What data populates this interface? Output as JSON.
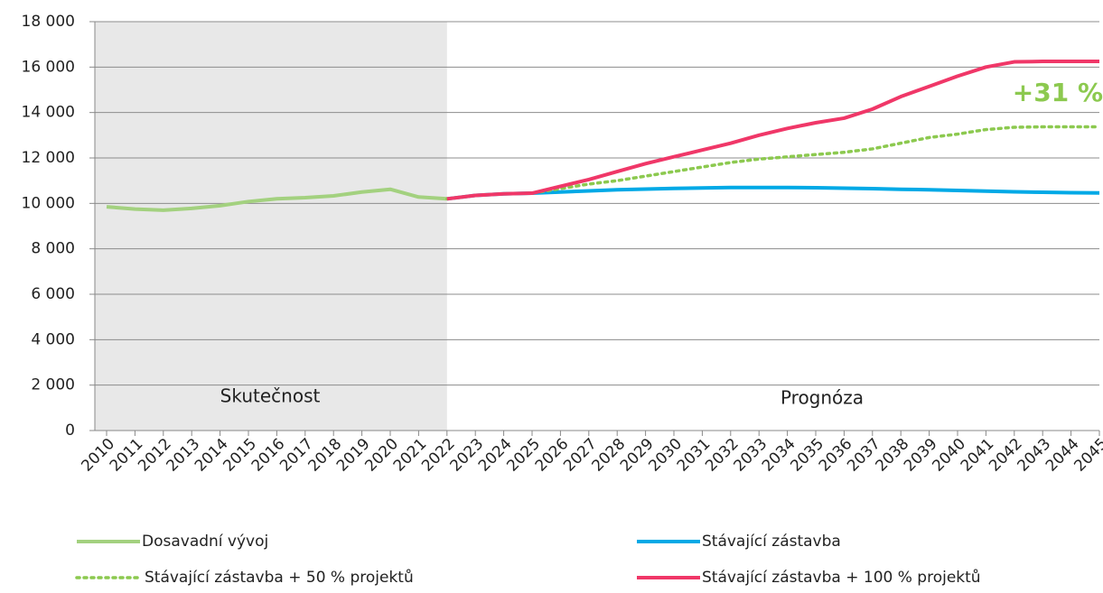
{
  "chart_data": {
    "type": "line",
    "categories": [
      "2010",
      "2011",
      "2012",
      "2013",
      "2014",
      "2015",
      "2016",
      "2017",
      "2018",
      "2019",
      "2020",
      "2021",
      "2022",
      "2023",
      "2024",
      "2025",
      "2026",
      "2027",
      "2028",
      "2029",
      "2030",
      "2031",
      "2032",
      "2033",
      "2034",
      "2035",
      "2036",
      "2037",
      "2038",
      "2039",
      "2040",
      "2041",
      "2042",
      "2043",
      "2044",
      "2045"
    ],
    "series": [
      {
        "name": "Dosavadní vývoj",
        "color": "#a3d17f",
        "dash": "solid",
        "values": [
          9850,
          9750,
          9700,
          9780,
          9900,
          10080,
          10200,
          10250,
          10330,
          10500,
          10620,
          10280,
          10200,
          null,
          null,
          null,
          null,
          null,
          null,
          null,
          null,
          null,
          null,
          null,
          null,
          null,
          null,
          null,
          null,
          null,
          null,
          null,
          null,
          null,
          null,
          null
        ]
      },
      {
        "name": "Stávající zástavba",
        "color": "#00a9e6",
        "dash": "solid",
        "values": [
          null,
          null,
          null,
          null,
          null,
          null,
          null,
          null,
          null,
          null,
          null,
          null,
          10200,
          10350,
          10420,
          10450,
          10500,
          10550,
          10600,
          10630,
          10660,
          10680,
          10700,
          10700,
          10700,
          10690,
          10670,
          10650,
          10620,
          10600,
          10570,
          10540,
          10510,
          10490,
          10470,
          10460
        ]
      },
      {
        "name": "Stávající zástavba + 50 % projektů",
        "color": "#8cc94f",
        "dash": "dotted",
        "values": [
          null,
          null,
          null,
          null,
          null,
          null,
          null,
          null,
          null,
          null,
          null,
          null,
          10200,
          10350,
          10420,
          10450,
          10650,
          10850,
          11000,
          11200,
          11400,
          11600,
          11800,
          11950,
          12050,
          12150,
          12250,
          12400,
          12650,
          12900,
          13050,
          13250,
          13350,
          13370,
          13370,
          13370
        ]
      },
      {
        "name": "Stávající zástavba + 100 % projektů",
        "color": "#f03768",
        "dash": "solid",
        "values": [
          null,
          null,
          null,
          null,
          null,
          null,
          null,
          null,
          null,
          null,
          null,
          null,
          10200,
          10350,
          10420,
          10450,
          10750,
          11050,
          11400,
          11750,
          12050,
          12350,
          12650,
          13000,
          13300,
          13550,
          13750,
          14150,
          14700,
          15150,
          15600,
          16000,
          16230,
          16250,
          16250,
          16250
        ]
      }
    ],
    "ylim": [
      0,
      18000
    ],
    "yticks": [
      {
        "value": 0,
        "label": "0"
      },
      {
        "value": 2000,
        "label": "2 000"
      },
      {
        "value": 4000,
        "label": "4 000"
      },
      {
        "value": 6000,
        "label": "6 000"
      },
      {
        "value": 8000,
        "label": "8 000"
      },
      {
        "value": 10000,
        "label": "10 000"
      },
      {
        "value": 12000,
        "label": "12 000"
      },
      {
        "value": 14000,
        "label": "14 000"
      },
      {
        "value": 16000,
        "label": "16 000"
      },
      {
        "value": 18000,
        "label": "18 000"
      }
    ],
    "grid": true,
    "annotations": {
      "history": "Skutečnost",
      "forecast": "Prognóza",
      "growth": "+31 %"
    }
  }
}
